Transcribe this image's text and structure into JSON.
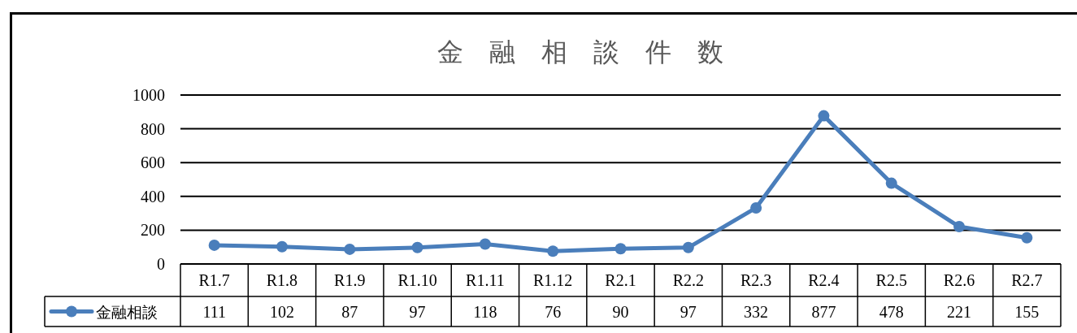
{
  "chart_data": {
    "type": "line",
    "title": "金　融　相　談　件　数",
    "categories": [
      "R1.7",
      "R1.8",
      "R1.9",
      "R1.10",
      "R1.11",
      "R1.12",
      "R2.1",
      "R2.2",
      "R2.3",
      "R2.4",
      "R2.5",
      "R2.6",
      "R2.7"
    ],
    "series": [
      {
        "name": "金融相談",
        "color": "#4a7ebb",
        "values": [
          111,
          102,
          87,
          97,
          118,
          76,
          90,
          97,
          332,
          877,
          478,
          221,
          155
        ]
      }
    ],
    "ylim": [
      0,
      1000
    ],
    "yticks": [
      0,
      200,
      400,
      600,
      800,
      1000
    ],
    "grid": "y",
    "marker": "circle",
    "line_style": "solid",
    "data_labels": true,
    "legend": "bottom left"
  }
}
